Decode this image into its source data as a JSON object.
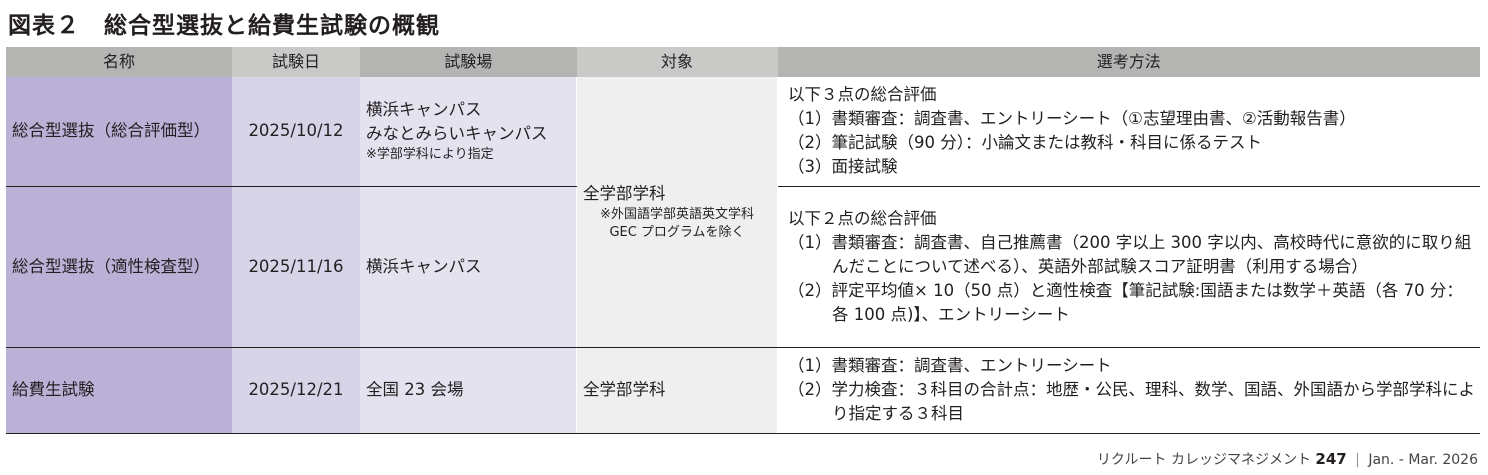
{
  "title": "図表２　総合型選抜と給費生試験の概観",
  "headers": [
    "名称",
    "試験日",
    "試験場",
    "対象",
    "選考方法"
  ],
  "rows": [
    {
      "name": "総合型選抜（総合評価型）",
      "date": "2025/10/12",
      "venue": [
        "横浜キャンパス",
        "みなとみらいキャンパス"
      ],
      "venue_note": "※学部学科により指定",
      "method": {
        "intro": "以下３点の総合評価",
        "items": [
          "（1）書類審査：調査書、エントリーシート（①志望理由書、②活動報告書）",
          "（2）筆記試験（90 分）：小論文または教科・科目に係るテスト",
          "（3）面接試験"
        ]
      }
    },
    {
      "name": "総合型選抜（適性検査型）",
      "date": "2025/11/16",
      "venue": [
        "横浜キャンパス"
      ],
      "method": {
        "intro": "以下２点の総合評価",
        "items": [
          "（1）書類審査：調査書、自己推薦書（200 字以上 300 字以内、高校時代に意欲的に取り組んだことについて述べる）、英語外部試験スコア証明書（利用する場合）",
          "（2）評定平均値× 10（50 点）と適性検査【筆記試験:国語または数学＋英語（各 70 分：各 100 点)】、エントリーシート"
        ]
      }
    },
    {
      "name": "給費生試験",
      "date": "2025/12/21",
      "venue": [
        "全国 23 会場"
      ],
      "target": "全学部学科",
      "method": {
        "items": [
          "（1）書類審査：調査書、エントリーシート",
          "（2）学力検査：３科目の合計点：地歴・公民、理科、数学、国語、外国語から学部学科により指定する３科目"
        ]
      }
    }
  ],
  "shared_target": {
    "text": "全学部学科",
    "note": [
      "※外国語学部英語英文学科",
      "GEC プログラムを除く"
    ]
  },
  "footer": {
    "publication": "リクルート カレッジマネジメント",
    "number": "247",
    "separator": "|",
    "date": "Jan. - Mar. 2026"
  }
}
